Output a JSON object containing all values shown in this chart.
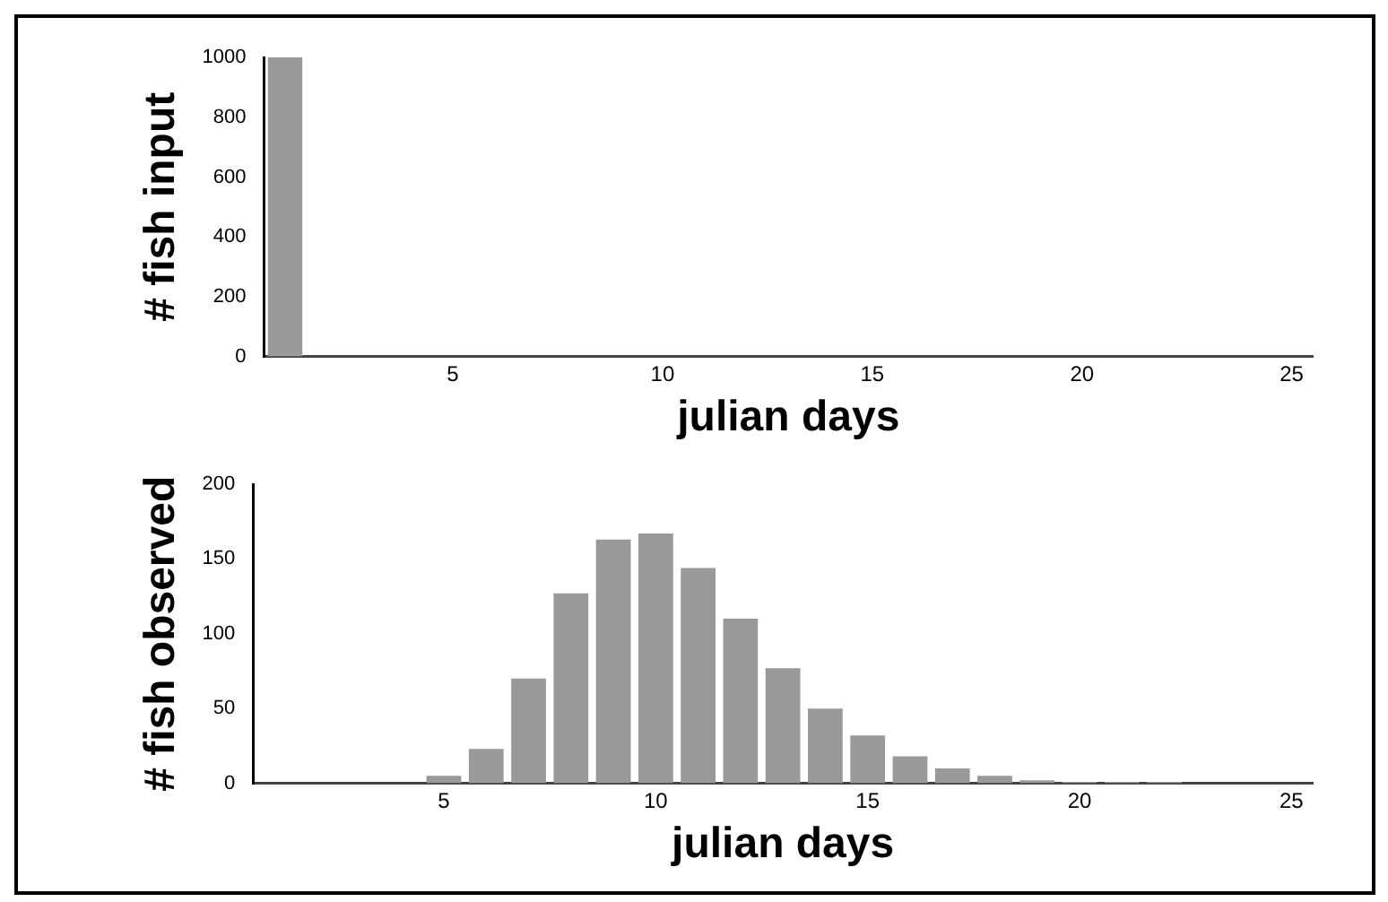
{
  "chart_data": [
    {
      "type": "bar",
      "xlabel": "julian days",
      "ylabel": "# fish input",
      "categories": [
        null,
        null,
        null,
        null,
        "5",
        null,
        null,
        null,
        null,
        "10",
        null,
        null,
        null,
        null,
        "15",
        null,
        null,
        null,
        null,
        "20",
        null,
        null,
        null,
        null,
        "25"
      ],
      "values": [
        1000,
        0,
        0,
        0,
        0,
        0,
        0,
        0,
        0,
        0,
        0,
        0,
        0,
        0,
        0,
        0,
        0,
        0,
        0,
        0,
        0,
        0,
        0,
        0,
        0
      ],
      "color": "#999999",
      "ylim": [
        0,
        1000
      ],
      "yticks": [
        0,
        200,
        400,
        600,
        800,
        1000
      ],
      "grid": false
    },
    {
      "type": "bar",
      "xlabel": "julian days",
      "ylabel": "# fish observed",
      "categories": [
        null,
        null,
        null,
        null,
        "5",
        null,
        null,
        null,
        null,
        "10",
        null,
        null,
        null,
        null,
        "15",
        null,
        null,
        null,
        null,
        "20",
        null,
        null,
        null,
        null,
        "25"
      ],
      "values": [
        0,
        0,
        0,
        0,
        5,
        23,
        70,
        127,
        163,
        167,
        144,
        110,
        77,
        50,
        32,
        18,
        10,
        5,
        2,
        1,
        1,
        1,
        0,
        0,
        0
      ],
      "color": "#999999",
      "ylim": [
        0,
        200
      ],
      "yticks": [
        0,
        50,
        100,
        150,
        200
      ],
      "grid": false
    }
  ]
}
